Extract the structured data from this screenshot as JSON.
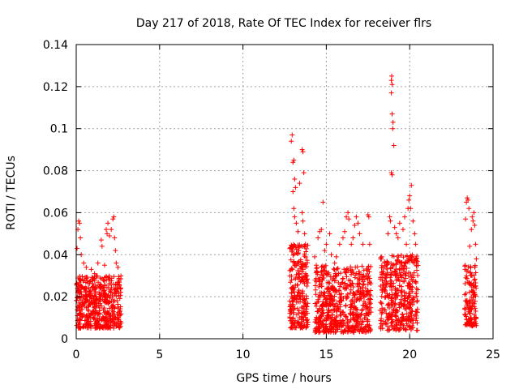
{
  "chart_data": {
    "type": "scatter",
    "title": "Day 217 of 2018, Rate Of TEC Index for receiver flrs",
    "xlabel": "GPS time / hours",
    "ylabel": "ROTI / TECUs",
    "xlim": [
      0,
      25
    ],
    "ylim": [
      0,
      0.14
    ],
    "x_ticks": [
      0,
      5,
      10,
      15,
      20,
      25
    ],
    "y_ticks": [
      0,
      0.02,
      0.04,
      0.06,
      0.08,
      0.1,
      0.12,
      0.14
    ],
    "x_tick_labels": [
      "0",
      "5",
      "10",
      "15",
      "20",
      "25"
    ],
    "y_tick_labels": [
      "0",
      "0.02",
      "0.04",
      "0.06",
      "0.08",
      "0.1",
      "0.12",
      "0.14"
    ],
    "grid": true,
    "marker": "+",
    "color": "#ff0000",
    "clusters": [
      {
        "x_range": [
          0.0,
          2.7
        ],
        "y_base": [
          0.005,
          0.03
        ],
        "n": 520
      },
      {
        "x_range": [
          12.8,
          13.9
        ],
        "y_base": [
          0.005,
          0.045
        ],
        "n": 260
      },
      {
        "x_range": [
          14.3,
          17.7
        ],
        "y_base": [
          0.003,
          0.035
        ],
        "n": 620
      },
      {
        "x_range": [
          18.2,
          20.5
        ],
        "y_base": [
          0.004,
          0.04
        ],
        "n": 420
      },
      {
        "x_range": [
          23.3,
          24.0
        ],
        "y_base": [
          0.006,
          0.035
        ],
        "n": 130
      }
    ],
    "series": [
      {
        "name": "ROTI",
        "points": [
          [
            0.05,
            0.043
          ],
          [
            0.1,
            0.052
          ],
          [
            0.15,
            0.056
          ],
          [
            0.2,
            0.055
          ],
          [
            0.25,
            0.048
          ],
          [
            0.3,
            0.04
          ],
          [
            0.45,
            0.036
          ],
          [
            0.6,
            0.034
          ],
          [
            0.9,
            0.033
          ],
          [
            1.1,
            0.031
          ],
          [
            1.3,
            0.036
          ],
          [
            1.5,
            0.047
          ],
          [
            1.55,
            0.044
          ],
          [
            1.7,
            0.035
          ],
          [
            1.8,
            0.052
          ],
          [
            1.85,
            0.05
          ],
          [
            1.9,
            0.055
          ],
          [
            2.0,
            0.049
          ],
          [
            2.1,
            0.052
          ],
          [
            2.2,
            0.057
          ],
          [
            2.25,
            0.058
          ],
          [
            2.3,
            0.048
          ],
          [
            2.35,
            0.042
          ],
          [
            2.4,
            0.036
          ],
          [
            2.5,
            0.034
          ],
          [
            2.55,
            0.028
          ],
          [
            12.9,
            0.094
          ],
          [
            12.95,
            0.097
          ],
          [
            13.0,
            0.084
          ],
          [
            13.05,
            0.085
          ],
          [
            13.1,
            0.076
          ],
          [
            13.15,
            0.072
          ],
          [
            13.0,
            0.07
          ],
          [
            13.05,
            0.062
          ],
          [
            13.1,
            0.058
          ],
          [
            13.2,
            0.055
          ],
          [
            13.3,
            0.051
          ],
          [
            13.4,
            0.074
          ],
          [
            13.55,
            0.09
          ],
          [
            13.6,
            0.089
          ],
          [
            13.65,
            0.079
          ],
          [
            13.55,
            0.06
          ],
          [
            13.6,
            0.056
          ],
          [
            13.7,
            0.05
          ],
          [
            13.75,
            0.045
          ],
          [
            14.3,
            0.039
          ],
          [
            14.4,
            0.035
          ],
          [
            14.5,
            0.048
          ],
          [
            14.6,
            0.051
          ],
          [
            14.7,
            0.052
          ],
          [
            14.8,
            0.065
          ],
          [
            14.9,
            0.042
          ],
          [
            15.0,
            0.045
          ],
          [
            15.2,
            0.05
          ],
          [
            15.3,
            0.04
          ],
          [
            15.5,
            0.036
          ],
          [
            15.6,
            0.039
          ],
          [
            15.8,
            0.045
          ],
          [
            16.0,
            0.048
          ],
          [
            16.1,
            0.051
          ],
          [
            16.2,
            0.058
          ],
          [
            16.3,
            0.06
          ],
          [
            16.35,
            0.057
          ],
          [
            16.5,
            0.045
          ],
          [
            16.6,
            0.048
          ],
          [
            16.7,
            0.054
          ],
          [
            16.8,
            0.058
          ],
          [
            16.9,
            0.055
          ],
          [
            17.0,
            0.05
          ],
          [
            17.2,
            0.045
          ],
          [
            17.5,
            0.059
          ],
          [
            17.55,
            0.058
          ],
          [
            17.6,
            0.045
          ],
          [
            18.3,
            0.038
          ],
          [
            18.5,
            0.036
          ],
          [
            18.7,
            0.05
          ],
          [
            18.8,
            0.058
          ],
          [
            18.85,
            0.056
          ],
          [
            18.9,
            0.123
          ],
          [
            18.92,
            0.125
          ],
          [
            18.95,
            0.121
          ],
          [
            18.9,
            0.117
          ],
          [
            18.95,
            0.107
          ],
          [
            18.98,
            0.1
          ],
          [
            19.0,
            0.103
          ],
          [
            19.05,
            0.092
          ],
          [
            18.9,
            0.079
          ],
          [
            18.95,
            0.078
          ],
          [
            19.1,
            0.053
          ],
          [
            19.2,
            0.05
          ],
          [
            19.3,
            0.048
          ],
          [
            19.4,
            0.055
          ],
          [
            19.6,
            0.052
          ],
          [
            19.7,
            0.058
          ],
          [
            19.8,
            0.045
          ],
          [
            19.9,
            0.062
          ],
          [
            19.95,
            0.066
          ],
          [
            20.0,
            0.068
          ],
          [
            20.05,
            0.062
          ],
          [
            20.1,
            0.073
          ],
          [
            20.2,
            0.056
          ],
          [
            20.3,
            0.05
          ],
          [
            20.35,
            0.045
          ],
          [
            20.4,
            0.035
          ],
          [
            23.35,
            0.057
          ],
          [
            23.4,
            0.065
          ],
          [
            23.45,
            0.067
          ],
          [
            23.5,
            0.066
          ],
          [
            23.55,
            0.062
          ],
          [
            23.6,
            0.044
          ],
          [
            23.7,
            0.052
          ],
          [
            23.75,
            0.058
          ],
          [
            23.8,
            0.056
          ],
          [
            23.85,
            0.06
          ],
          [
            23.9,
            0.054
          ],
          [
            23.95,
            0.045
          ],
          [
            24.0,
            0.038
          ]
        ]
      }
    ]
  }
}
